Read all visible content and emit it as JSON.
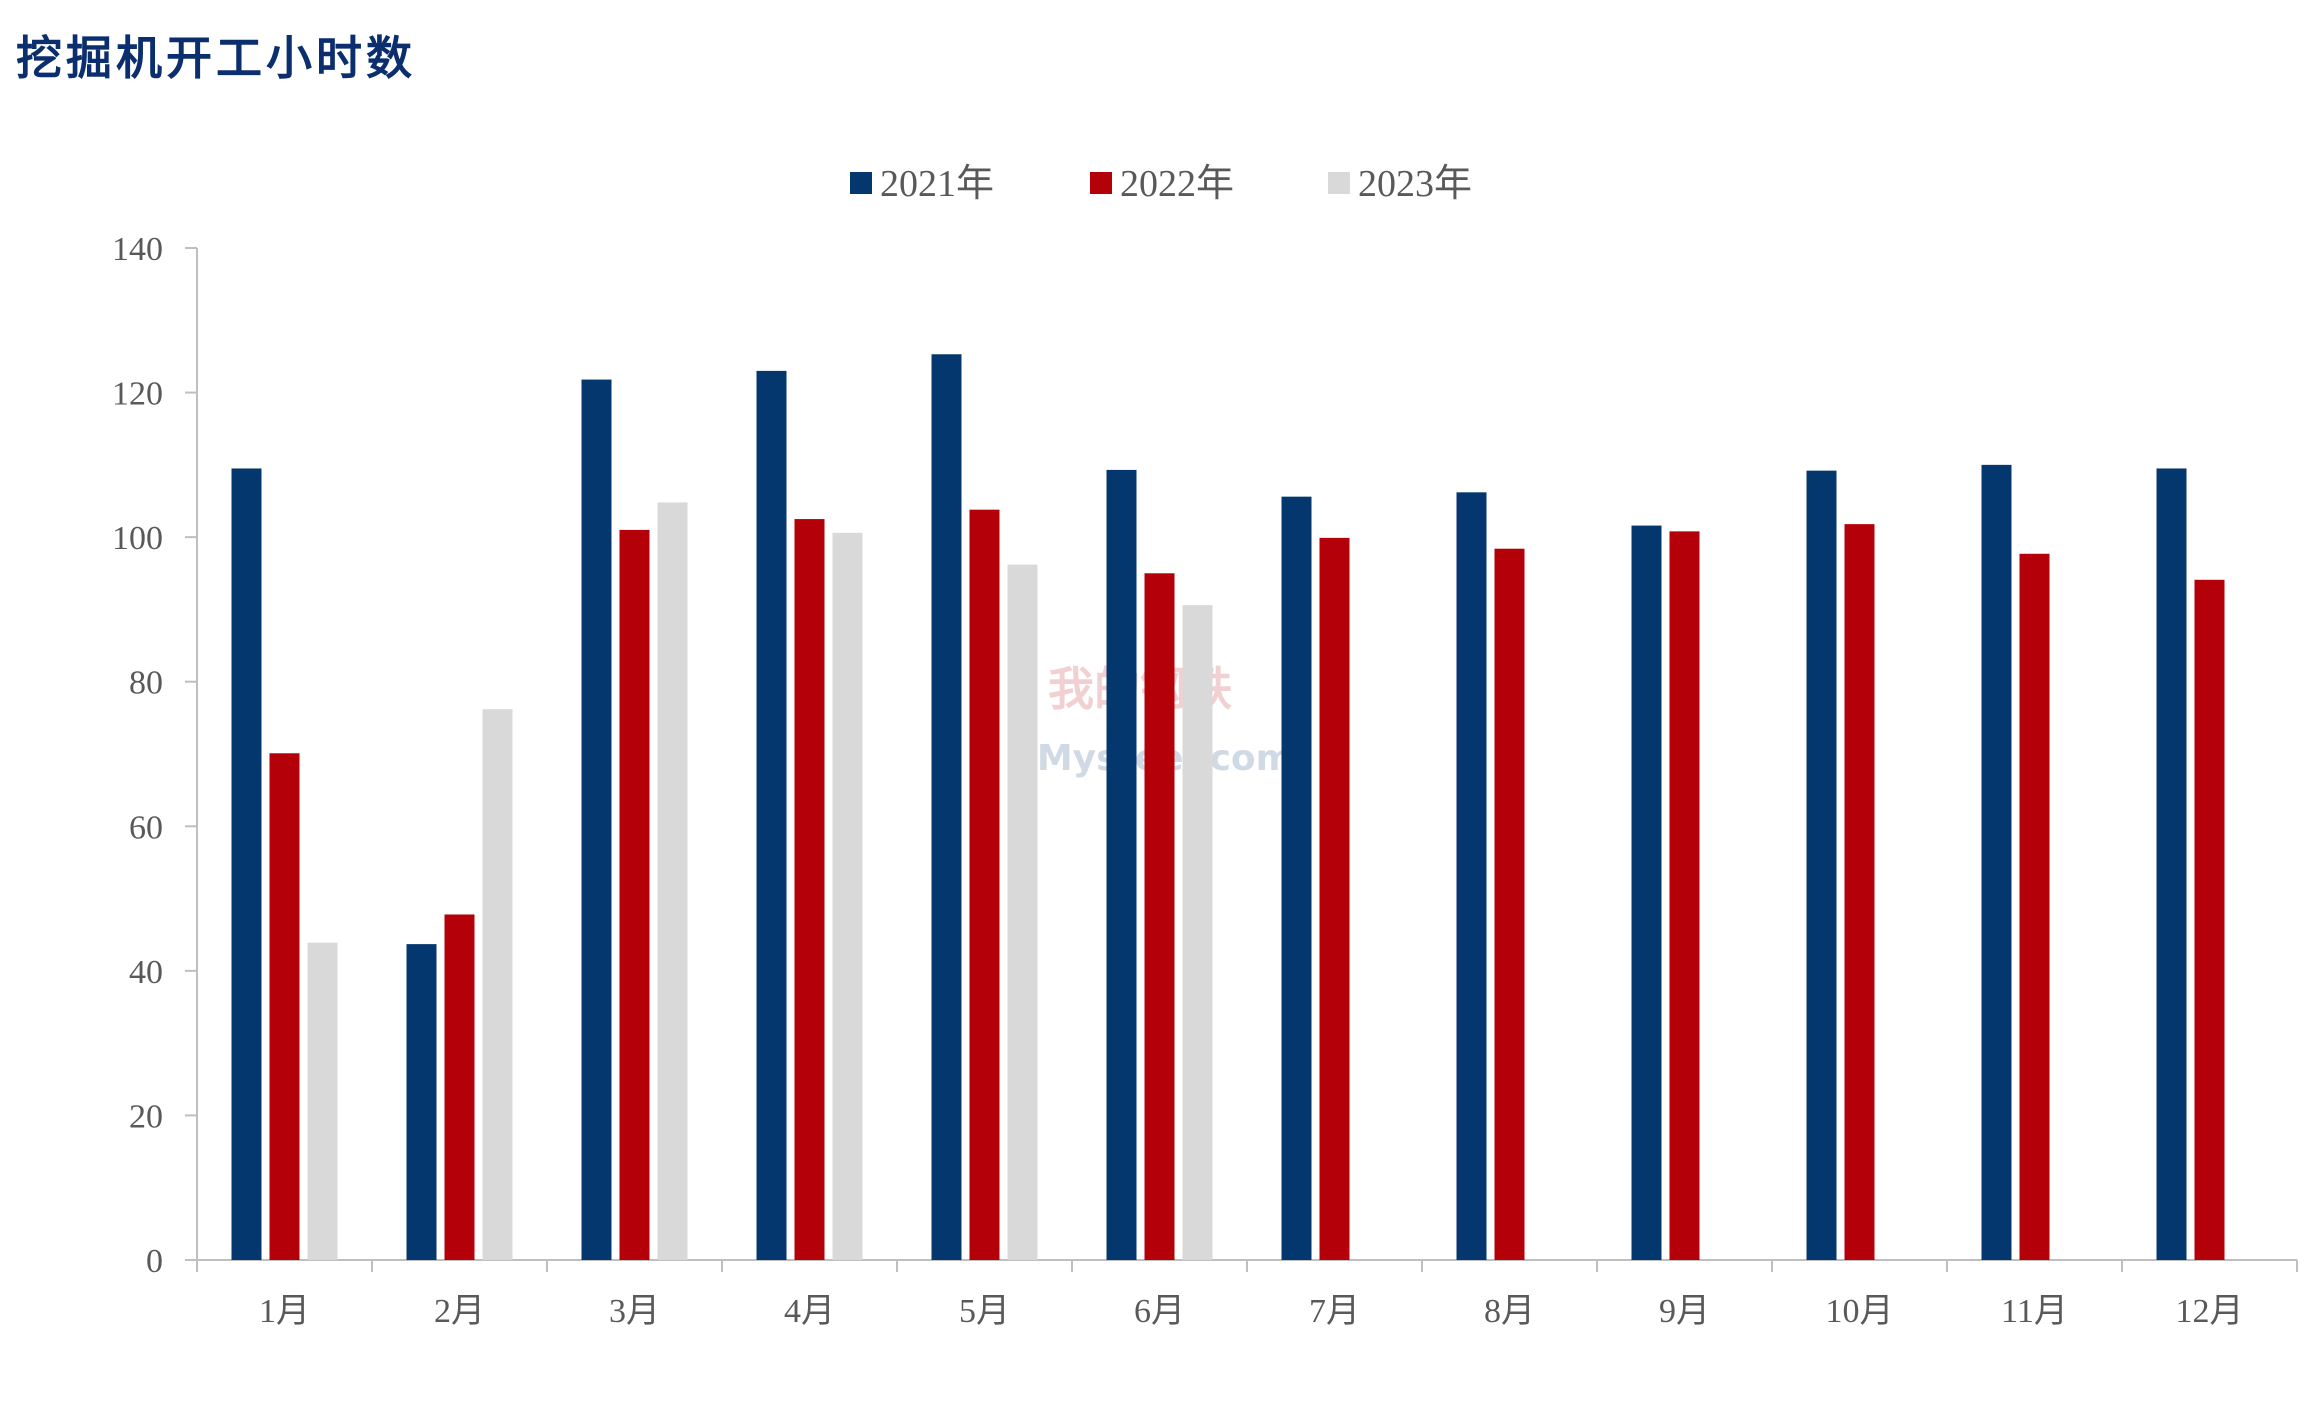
{
  "title": "挖掘机开工小时数",
  "watermark": {
    "cn": "我的钢铁",
    "en": "Mysteel.com"
  },
  "chart_data": {
    "type": "bar",
    "categories": [
      "1月",
      "2月",
      "3月",
      "4月",
      "5月",
      "6月",
      "7月",
      "8月",
      "9月",
      "10月",
      "11月",
      "12月"
    ],
    "series": [
      {
        "name": "2021年",
        "color": "#04376e",
        "values": [
          109.5,
          43.7,
          121.8,
          123.0,
          125.3,
          109.3,
          105.6,
          106.2,
          101.6,
          109.2,
          110.0,
          109.5
        ]
      },
      {
        "name": "2022年",
        "color": "#b40008",
        "values": [
          70.1,
          47.8,
          101.0,
          102.5,
          103.8,
          95.0,
          99.9,
          98.4,
          100.8,
          101.8,
          97.7,
          94.1
        ]
      },
      {
        "name": "2023年",
        "color": "#d9d9d9",
        "values": [
          43.9,
          76.2,
          104.8,
          100.6,
          96.2,
          90.6,
          null,
          null,
          null,
          null,
          null,
          null
        ]
      }
    ],
    "ylim": [
      0,
      140
    ],
    "yticks": [
      0,
      20,
      40,
      60,
      80,
      100,
      120,
      140
    ],
    "xlabel": "",
    "ylabel": "",
    "legend": "top-center",
    "grid": false
  }
}
